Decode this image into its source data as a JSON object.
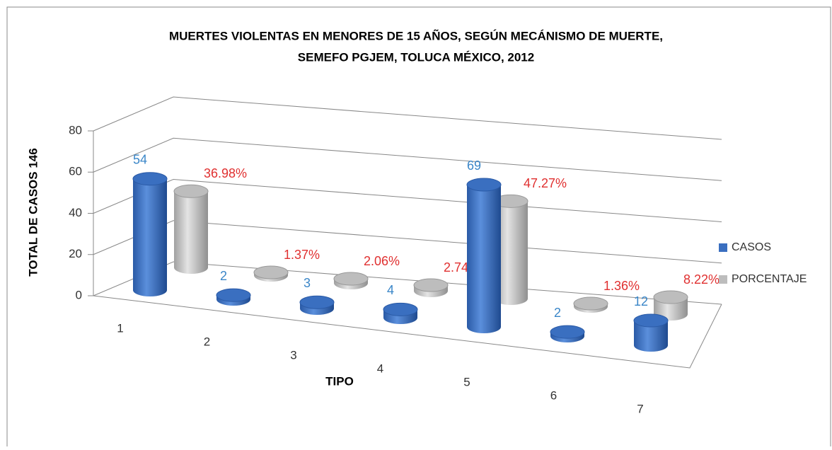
{
  "chart_data": {
    "type": "bar3d",
    "title": [
      "MUERTES VIOLENTAS EN MENORES DE 15 AÑOS, SEGÚN MECÁNISMO DE MUERTE,",
      "SEMEFO PGJEM, TOLUCA MÉXICO, 2012"
    ],
    "y_label": "TOTAL DE CASOS 146",
    "x_label": "TIPO",
    "categories": [
      "1",
      "2",
      "3",
      "4",
      "5",
      "6",
      "7"
    ],
    "series": [
      {
        "name": "CASOS",
        "color": "#3a6fc0",
        "values": [
          54,
          2,
          3,
          4,
          69,
          2,
          12
        ]
      },
      {
        "name": "PORCENTAJE",
        "color": "#bdbdbd",
        "values": [
          36.98,
          1.37,
          2.06,
          2.74,
          47.27,
          1.36,
          8.22
        ],
        "value_labels": [
          "36.98%",
          "1.37%",
          "2.06%",
          "2.74%",
          "47.27%",
          "1.36%",
          "8.22%"
        ]
      }
    ],
    "ylim": [
      0,
      80
    ],
    "yticks": [
      0,
      20,
      40,
      60,
      80
    ],
    "grid": true,
    "legend": "right"
  }
}
